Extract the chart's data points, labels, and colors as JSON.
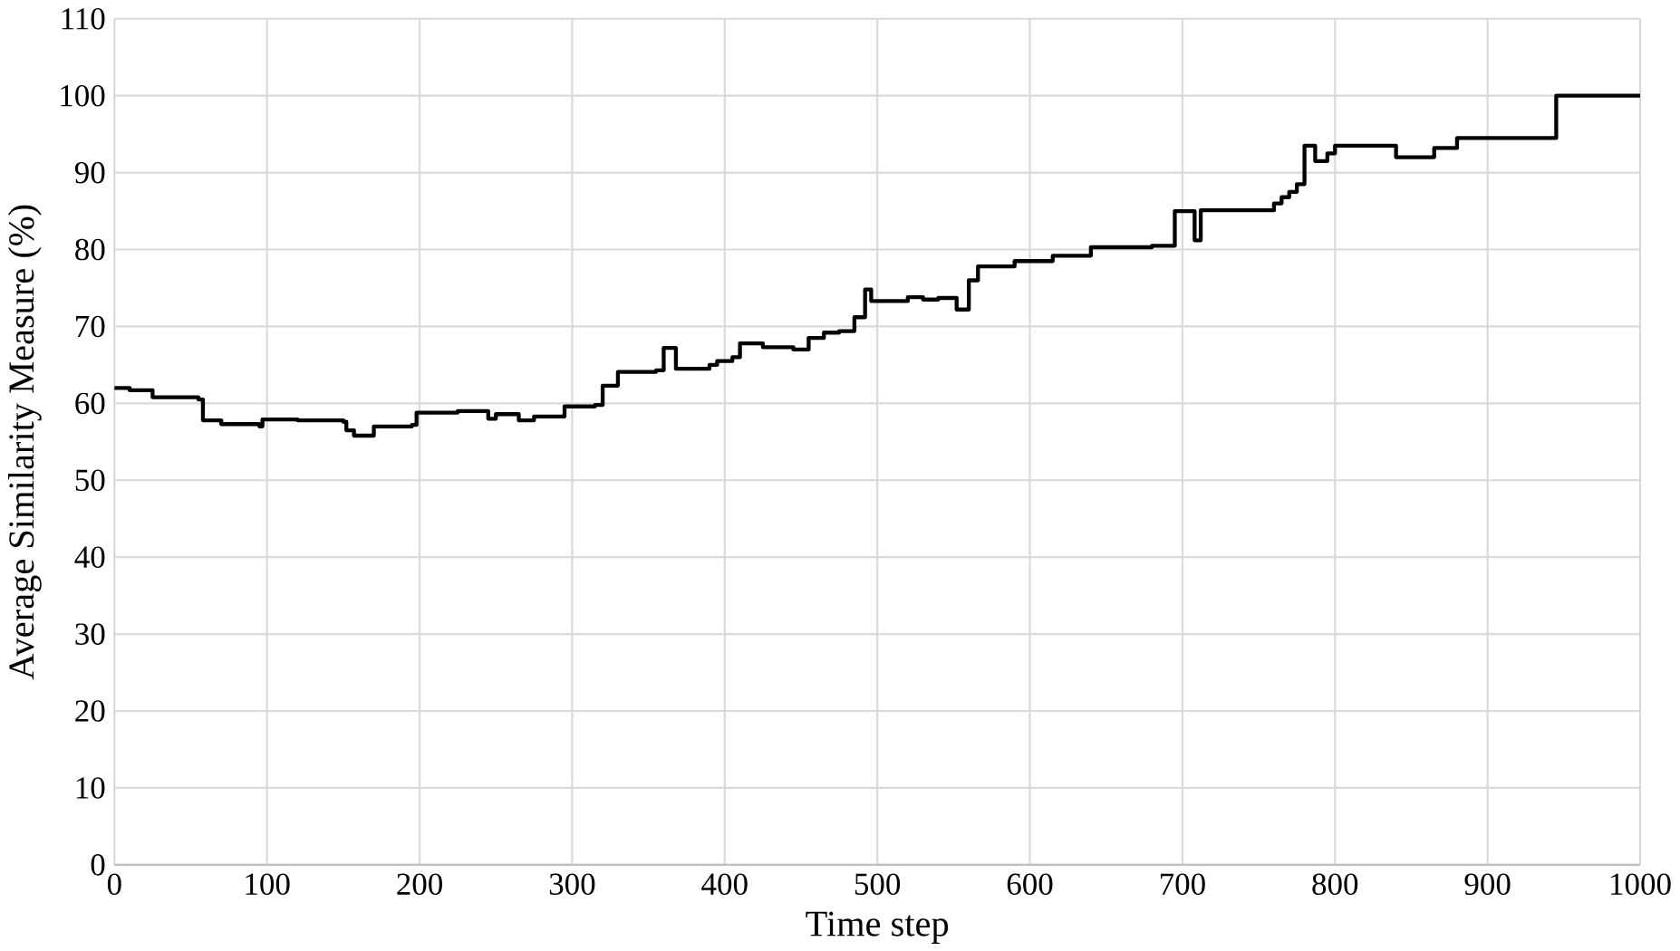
{
  "chart_data": {
    "type": "step",
    "xlabel": "Time step",
    "ylabel": "Average Similarity Measure (%)",
    "xlim": [
      0,
      1000
    ],
    "ylim": [
      0,
      110
    ],
    "xticks": [
      0,
      100,
      200,
      300,
      400,
      500,
      600,
      700,
      800,
      900,
      1000
    ],
    "yticks": [
      0,
      10,
      20,
      30,
      40,
      50,
      60,
      70,
      80,
      90,
      100,
      110
    ],
    "grid": true,
    "marker": "none",
    "line_style": "solid",
    "series": [
      {
        "color": "#000000",
        "x": [
          0,
          10,
          25,
          55,
          58,
          70,
          95,
          97,
          120,
          150,
          152,
          157,
          170,
          195,
          198,
          225,
          245,
          250,
          265,
          275,
          295,
          315,
          320,
          330,
          355,
          360,
          368,
          390,
          395,
          405,
          410,
          425,
          445,
          455,
          465,
          475,
          485,
          492,
          496,
          520,
          530,
          540,
          552,
          560,
          566,
          590,
          615,
          640,
          680,
          695,
          708,
          712,
          760,
          765,
          770,
          775,
          780,
          787,
          795,
          800,
          840,
          865,
          880,
          945,
          1000
        ],
        "values": [
          62,
          61.7,
          60.8,
          60.5,
          57.8,
          57.3,
          57.0,
          57.9,
          57.8,
          57.6,
          56.5,
          55.8,
          57.0,
          57.2,
          58.8,
          59.0,
          58.0,
          58.6,
          57.8,
          58.3,
          59.6,
          59.8,
          62.3,
          64.1,
          64.3,
          67.2,
          64.5,
          65.0,
          65.5,
          66.0,
          67.8,
          67.3,
          67.0,
          68.5,
          69.2,
          69.4,
          71.2,
          74.8,
          73.3,
          73.8,
          73.5,
          73.7,
          72.2,
          76.0,
          77.8,
          78.5,
          79.2,
          80.3,
          80.5,
          85.0,
          81.2,
          85.1,
          86.0,
          86.8,
          87.5,
          88.5,
          93.5,
          91.5,
          92.5,
          93.5,
          92.0,
          93.2,
          94.5,
          100,
          100
        ]
      }
    ]
  }
}
